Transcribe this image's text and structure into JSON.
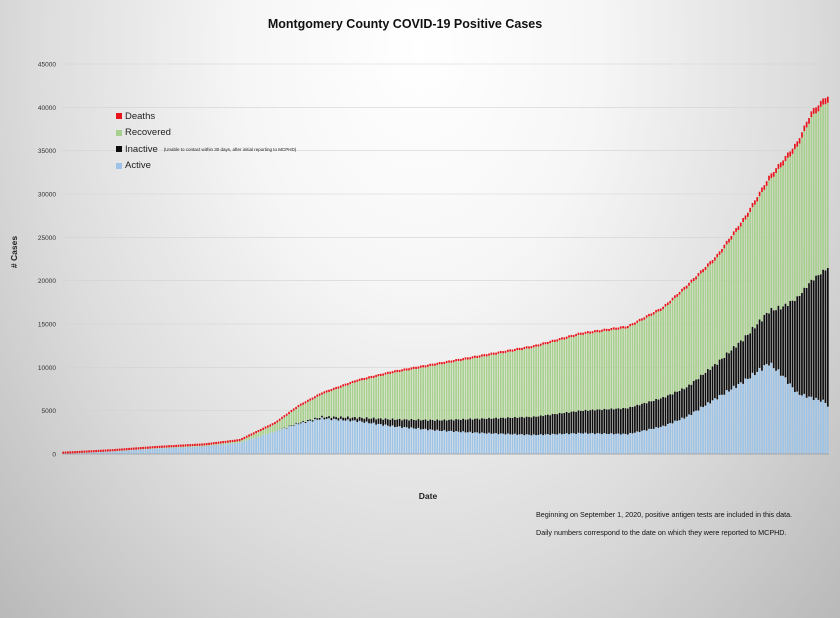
{
  "chart_data": {
    "type": "bar",
    "stacked": true,
    "title": "Montgomery County COVID-19 Positive Cases",
    "xlabel": "Date",
    "ylabel": "# Cases",
    "ylim": [
      0,
      45000
    ],
    "y_ticks": [
      "0",
      "5000",
      "10000",
      "15000",
      "20000",
      "25000",
      "30000",
      "35000",
      "40000",
      "45000"
    ],
    "grid": true,
    "legend_position": "top-left",
    "series": [
      {
        "name": "Deaths",
        "color": "#e8131b"
      },
      {
        "name": "Recovered",
        "color": "#a8d08d"
      },
      {
        "name": "Inactive",
        "color": "#0d0d0d",
        "note": "(Unable to contact within 30 days, after initial reporting to MCPHD)"
      },
      {
        "name": "Active",
        "color": "#9dc3e6"
      }
    ],
    "x_keypoints": [
      {
        "i": 0,
        "total": 20,
        "active": 20,
        "inactive": 0
      },
      {
        "i": 20,
        "total": 300,
        "active": 280,
        "inactive": 0
      },
      {
        "i": 40,
        "total": 700,
        "active": 640,
        "inactive": 0
      },
      {
        "i": 60,
        "total": 1000,
        "active": 900,
        "inactive": 0
      },
      {
        "i": 75,
        "total": 1500,
        "active": 1300,
        "inactive": 0
      },
      {
        "i": 90,
        "total": 3500,
        "active": 2600,
        "inactive": 0
      },
      {
        "i": 100,
        "total": 5500,
        "active": 3500,
        "inactive": 100
      },
      {
        "i": 110,
        "total": 7000,
        "active": 4100,
        "inactive": 200
      },
      {
        "i": 125,
        "total": 8500,
        "active": 3800,
        "inactive": 400
      },
      {
        "i": 140,
        "total": 9500,
        "active": 3200,
        "inactive": 800
      },
      {
        "i": 160,
        "total": 10500,
        "active": 2700,
        "inactive": 1200
      },
      {
        "i": 180,
        "total": 11500,
        "active": 2400,
        "inactive": 1700
      },
      {
        "i": 200,
        "total": 12500,
        "active": 2200,
        "inactive": 2100
      },
      {
        "i": 220,
        "total": 14000,
        "active": 2400,
        "inactive": 2600
      },
      {
        "i": 240,
        "total": 14800,
        "active": 2300,
        "inactive": 3000
      },
      {
        "i": 255,
        "total": 17000,
        "active": 3200,
        "inactive": 3300
      },
      {
        "i": 265,
        "total": 19500,
        "active": 4300,
        "inactive": 3400
      },
      {
        "i": 278,
        "total": 23000,
        "active": 6500,
        "inactive": 4000
      },
      {
        "i": 290,
        "total": 27500,
        "active": 8500,
        "inactive": 5000
      },
      {
        "i": 300,
        "total": 32000,
        "active": 10500,
        "inactive": 6000
      },
      {
        "i": 306,
        "total": 34000,
        "active": 9000,
        "inactive": 8000
      },
      {
        "i": 312,
        "total": 36000,
        "active": 7000,
        "inactive": 11000
      },
      {
        "i": 318,
        "total": 39500,
        "active": 6500,
        "inactive": 13500
      },
      {
        "i": 324,
        "total": 41200,
        "active": 6000,
        "inactive": 15300
      },
      {
        "i": 325,
        "total": 41300,
        "active": 5500,
        "inactive": 16000
      }
    ],
    "num_bars": 326,
    "death_fraction": 0.017
  },
  "notes": [
    "Beginning on September 1, 2020, positive antigen tests are included in this data.",
    "Daily numbers correspond to the date on which they were reported to MCPHD."
  ]
}
